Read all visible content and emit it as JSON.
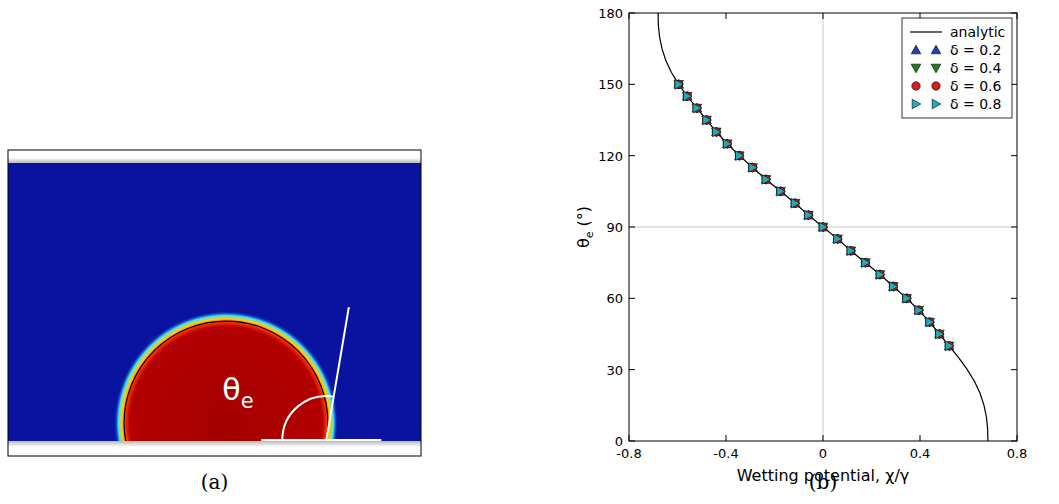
{
  "panel_a": {
    "angle_label": "θe",
    "caption": "(a)"
  },
  "chart_data": {
    "type": "line",
    "caption": "(b)",
    "xlabel": "Wetting potential, χ/γ",
    "ylabel": "θe (°)",
    "xlim": [
      -0.8,
      0.8
    ],
    "ylim": [
      0,
      180
    ],
    "xticks": [
      -0.8,
      -0.4,
      0,
      0.4,
      0.8
    ],
    "yticks": [
      0,
      30,
      60,
      90,
      120,
      150,
      180
    ],
    "vlines": [
      0
    ],
    "hlines": [
      90
    ],
    "grid": false,
    "legend": "upper right",
    "series": [
      {
        "name": "analytic",
        "type": "line",
        "color": "#000000",
        "line_style": "solid",
        "x": [
          -0.68,
          -0.679,
          -0.674,
          -0.664,
          -0.648,
          -0.625,
          -0.595,
          -0.56,
          -0.52,
          -0.48,
          -0.44,
          -0.395,
          -0.345,
          -0.29,
          -0.235,
          -0.175,
          -0.115,
          -0.06,
          0,
          0.06,
          0.115,
          0.175,
          0.235,
          0.29,
          0.345,
          0.395,
          0.44,
          0.48,
          0.52,
          0.56,
          0.595,
          0.625,
          0.648,
          0.664,
          0.674,
          0.679,
          0.68
        ],
        "values": [
          180,
          175,
          170,
          165,
          160,
          155,
          150,
          145,
          140,
          135,
          130,
          125,
          120,
          115,
          110,
          105,
          100,
          95,
          90,
          85,
          80,
          75,
          70,
          65,
          60,
          55,
          50,
          45,
          40,
          35,
          30,
          25,
          20,
          15,
          10,
          5,
          0
        ]
      },
      {
        "name": "δ = 0.2",
        "type": "scatter",
        "color": "#1f3fbf",
        "marker": "triangle-up",
        "x": [
          -0.595,
          -0.56,
          -0.52,
          -0.48,
          -0.44,
          -0.395,
          -0.345,
          -0.29,
          -0.235,
          -0.175,
          -0.115,
          -0.06,
          0,
          0.06,
          0.115,
          0.175,
          0.235,
          0.29,
          0.345,
          0.395,
          0.44,
          0.48,
          0.52
        ],
        "values": [
          150,
          145,
          140,
          135,
          130,
          125,
          120,
          115,
          110,
          105,
          100,
          95,
          90,
          85,
          80,
          75,
          70,
          65,
          60,
          55,
          50,
          45,
          40
        ]
      },
      {
        "name": "δ = 0.4",
        "type": "scatter",
        "color": "#1b7f1b",
        "marker": "triangle-down",
        "x": [
          -0.595,
          -0.56,
          -0.52,
          -0.48,
          -0.44,
          -0.395,
          -0.345,
          -0.29,
          -0.235,
          -0.175,
          -0.115,
          -0.06,
          0,
          0.06,
          0.115,
          0.175,
          0.235,
          0.29,
          0.345,
          0.395,
          0.44,
          0.48,
          0.52
        ],
        "values": [
          150,
          145,
          140,
          135,
          130,
          125,
          120,
          115,
          110,
          105,
          100,
          95,
          90,
          85,
          80,
          75,
          70,
          65,
          60,
          55,
          50,
          45,
          40
        ]
      },
      {
        "name": "δ = 0.6",
        "type": "scatter",
        "color": "#d42020",
        "marker": "circle",
        "x": [
          -0.595,
          -0.56,
          -0.52,
          -0.48,
          -0.44,
          -0.395,
          -0.345,
          -0.29,
          -0.235,
          -0.175,
          -0.115,
          -0.06,
          0,
          0.06,
          0.115,
          0.175,
          0.235,
          0.29,
          0.345,
          0.395,
          0.44,
          0.48,
          0.52
        ],
        "values": [
          150,
          145,
          140,
          135,
          130,
          125,
          120,
          115,
          110,
          105,
          100,
          95,
          90,
          85,
          80,
          75,
          70,
          65,
          60,
          55,
          50,
          45,
          40
        ]
      },
      {
        "name": "δ = 0.8",
        "type": "scatter",
        "color": "#22aab8",
        "marker": "triangle-right",
        "x": [
          -0.595,
          -0.56,
          -0.52,
          -0.48,
          -0.44,
          -0.395,
          -0.345,
          -0.29,
          -0.235,
          -0.175,
          -0.115,
          -0.06,
          0,
          0.06,
          0.115,
          0.175,
          0.235,
          0.29,
          0.345,
          0.395,
          0.44,
          0.48,
          0.52
        ],
        "values": [
          150,
          145,
          140,
          135,
          130,
          125,
          120,
          115,
          110,
          105,
          100,
          95,
          90,
          85,
          80,
          75,
          70,
          65,
          60,
          55,
          50,
          45,
          40
        ]
      }
    ]
  }
}
